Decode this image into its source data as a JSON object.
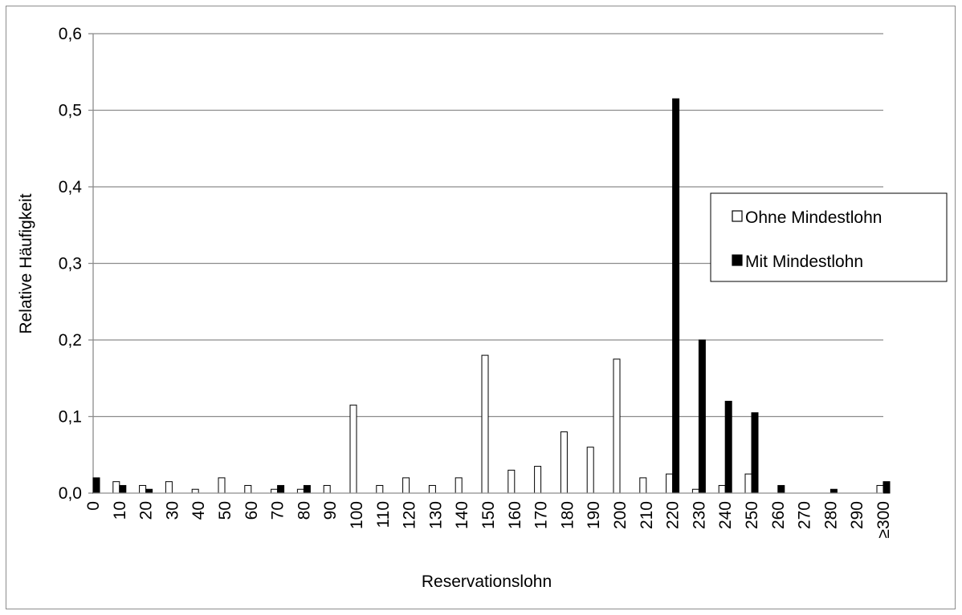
{
  "chart_data": {
    "type": "bar",
    "title": "",
    "xlabel": "Reservationslohn",
    "ylabel": "Relative Häufigkeit",
    "ylim": [
      0,
      0.6
    ],
    "yticks": [
      "0,0",
      "0,1",
      "0,2",
      "0,3",
      "0,4",
      "0,5",
      "0,6"
    ],
    "grid": true,
    "legend_position": "right",
    "categories": [
      "0",
      "10",
      "20",
      "30",
      "40",
      "50",
      "60",
      "70",
      "80",
      "90",
      "100",
      "110",
      "120",
      "130",
      "140",
      "150",
      "160",
      "170",
      "180",
      "190",
      "200",
      "210",
      "220",
      "230",
      "240",
      "250",
      "260",
      "270",
      "280",
      "290",
      "≥300"
    ],
    "series": [
      {
        "name": "Ohne Mindestlohn",
        "color": "#ffffff",
        "stroke": "#000000",
        "values": [
          0,
          0.015,
          0.01,
          0.015,
          0.005,
          0.02,
          0.01,
          0.005,
          0.005,
          0.01,
          0.115,
          0.01,
          0.02,
          0.01,
          0.02,
          0.18,
          0.03,
          0.035,
          0.08,
          0.06,
          0.175,
          0.02,
          0.025,
          0.005,
          0.01,
          0.025,
          0,
          0,
          0,
          0,
          0.01
        ]
      },
      {
        "name": "Mit Mindestlohn",
        "color": "#000000",
        "stroke": "#000000",
        "values": [
          0.02,
          0.01,
          0.005,
          0,
          0,
          0,
          0,
          0.01,
          0.01,
          0,
          0,
          0,
          0,
          0,
          0,
          0,
          0,
          0,
          0,
          0,
          0,
          0,
          0.515,
          0.2,
          0.12,
          0.105,
          0.01,
          0,
          0.005,
          0,
          0.015
        ]
      }
    ]
  }
}
